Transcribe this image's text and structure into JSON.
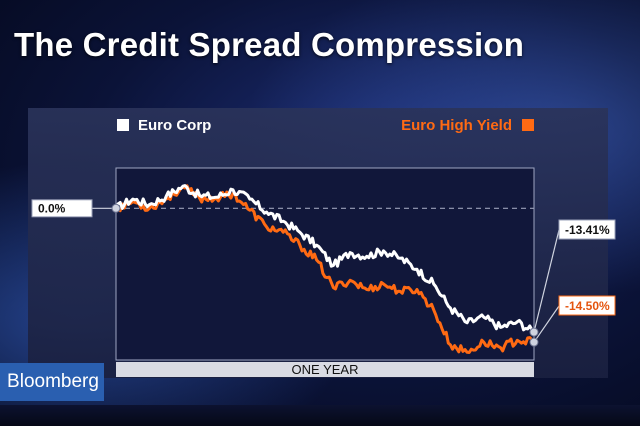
{
  "headline": "The Credit Spread Compression",
  "brand": "Bloomberg",
  "colors": {
    "euro_corp": "#ffffff",
    "euro_high_yield": "#ff6a13",
    "label_bg": "#ffffff"
  },
  "chart_data": {
    "type": "line",
    "title": "",
    "xlabel": "ONE YEAR",
    "ylabel": "",
    "ylim": [
      -16,
      3.5
    ],
    "legend": "top",
    "grid": false,
    "baseline_label": "0.0%",
    "end_labels": [
      "-13.41%",
      "-14.50%"
    ],
    "series": [
      {
        "name": "Euro Corp",
        "color": "#ffffff",
        "x": [
          0,
          0.04,
          0.08,
          0.12,
          0.16,
          0.2,
          0.24,
          0.28,
          0.32,
          0.36,
          0.4,
          0.44,
          0.48,
          0.52,
          0.56,
          0.6,
          0.64,
          0.68,
          0.72,
          0.76,
          0.8,
          0.84,
          0.88,
          0.92,
          0.96,
          1.0
        ],
        "y": [
          0,
          1.0,
          0.4,
          1.3,
          2.4,
          1.4,
          1.2,
          2.0,
          1.0,
          -0.4,
          -1.4,
          -2.6,
          -4.0,
          -6.2,
          -4.8,
          -5.2,
          -4.6,
          -5.4,
          -6.6,
          -8.2,
          -10.8,
          -12.4,
          -11.8,
          -12.9,
          -12.3,
          -13.41
        ]
      },
      {
        "name": "Euro High Yield",
        "color": "#ff6a13",
        "x": [
          0,
          0.04,
          0.08,
          0.12,
          0.16,
          0.2,
          0.24,
          0.28,
          0.32,
          0.36,
          0.4,
          0.44,
          0.48,
          0.52,
          0.56,
          0.6,
          0.64,
          0.68,
          0.72,
          0.76,
          0.8,
          0.84,
          0.88,
          0.92,
          0.96,
          1.0
        ],
        "y": [
          0,
          0.7,
          0.0,
          1.0,
          2.3,
          1.1,
          1.1,
          1.6,
          -0.2,
          -2.0,
          -2.6,
          -4.0,
          -5.6,
          -8.6,
          -7.8,
          -8.8,
          -8.2,
          -9.0,
          -8.8,
          -11.0,
          -14.8,
          -15.6,
          -14.5,
          -15.1,
          -14.3,
          -14.5
        ]
      }
    ]
  }
}
